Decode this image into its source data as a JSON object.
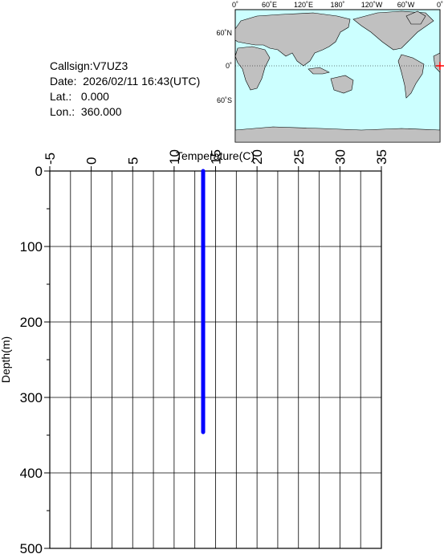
{
  "chart_data": {
    "type": "line",
    "info": [
      "Callsign:V7UZ3",
      "Date:  2026/02/11 16:43(UTC)",
      "Lat.:   0.000",
      "Lon.:  360.000"
    ],
    "xlabel": "Temperature(C)",
    "ylabel": "Depth(m)",
    "depth": [
      0,
      346
    ],
    "series": [
      {
        "name": "Temperature",
        "color": "#0000ff",
        "values": [
          13.5,
          13.5
        ]
      }
    ],
    "xlim": [
      -5,
      35
    ],
    "xticks": [
      -5,
      0,
      5,
      10,
      15,
      20,
      25,
      30,
      35
    ],
    "ylim": [
      0,
      500
    ],
    "yticks": [
      0,
      100,
      200,
      300,
      400,
      500
    ],
    "grid": true,
    "map": {
      "lon_labels": [
        "0˚",
        "60˚E",
        "120˚E",
        "180˚",
        "120˚W",
        "60˚W",
        "0˚"
      ],
      "lat_labels": [
        "60˚N",
        "0˚",
        "60˚S"
      ]
    }
  }
}
